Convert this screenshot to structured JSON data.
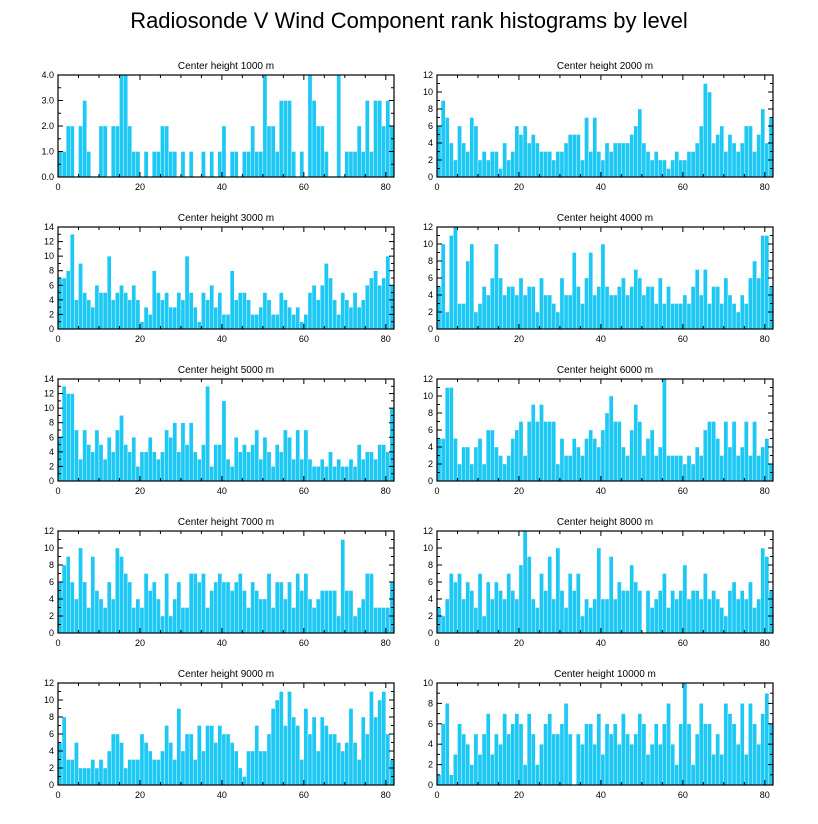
{
  "title": "Radiosonde V Wind Component rank histograms by level",
  "colors": {
    "bar": "#1ec8f5",
    "axis": "#000000",
    "background": "#ffffff"
  },
  "chart_data": [
    {
      "type": "bar",
      "title": "Center height 1000 m",
      "xlim": [
        0,
        82
      ],
      "ylim": [
        0,
        4
      ],
      "xticks": [
        0,
        20,
        40,
        60,
        80
      ],
      "xtick_labels": [
        "0",
        "20",
        "40",
        "60",
        "80"
      ],
      "yticks": [
        0,
        1,
        2,
        3,
        4
      ],
      "ytick_labels": [
        "0.0",
        "1.0",
        "2.0",
        "3.0",
        "4.0"
      ],
      "values": [
        1,
        1,
        2,
        2,
        0,
        2,
        3,
        1,
        0,
        0,
        2,
        2,
        0,
        2,
        2,
        4,
        4,
        2,
        1,
        1,
        0,
        1,
        0,
        1,
        1,
        2,
        2,
        1,
        1,
        0,
        1,
        0,
        1,
        0,
        0,
        1,
        0,
        1,
        0,
        1,
        2,
        0,
        1,
        1,
        0,
        1,
        1,
        2,
        1,
        1,
        4,
        2,
        2,
        1,
        3,
        3,
        3,
        1,
        0,
        1,
        0,
        4,
        3,
        2,
        2,
        1,
        0,
        0,
        4,
        0,
        1,
        1,
        1,
        2,
        1,
        3,
        1,
        3,
        3,
        2,
        3,
        2
      ]
    },
    {
      "type": "bar",
      "title": "Center height 2000 m",
      "xlim": [
        0,
        82
      ],
      "ylim": [
        0,
        12
      ],
      "xticks": [
        0,
        20,
        40,
        60,
        80
      ],
      "xtick_labels": [
        "0",
        "20",
        "40",
        "60",
        "80"
      ],
      "yticks": [
        0,
        2,
        4,
        6,
        8,
        10,
        12
      ],
      "ytick_labels": [
        "0",
        "2",
        "4",
        "6",
        "8",
        "10",
        "12"
      ],
      "values": [
        6,
        9,
        7,
        4,
        2,
        6,
        4,
        3,
        7,
        6,
        2,
        3,
        2,
        3,
        3,
        1,
        4,
        2,
        3,
        6,
        5,
        6,
        4,
        5,
        4,
        3,
        3,
        3,
        2,
        3,
        3,
        4,
        5,
        5,
        5,
        2,
        7,
        3,
        7,
        3,
        2,
        4,
        3,
        4,
        4,
        4,
        4,
        5,
        6,
        8,
        4,
        3,
        2,
        3,
        2,
        2,
        1,
        2,
        3,
        2,
        2,
        3,
        3,
        4,
        6,
        11,
        10,
        4,
        5,
        6,
        3,
        5,
        4,
        3,
        4,
        6,
        6,
        3,
        5,
        8,
        4,
        7
      ]
    },
    {
      "type": "bar",
      "title": "Center height 3000 m",
      "xlim": [
        0,
        82
      ],
      "ylim": [
        0,
        14
      ],
      "xticks": [
        0,
        20,
        40,
        60,
        80
      ],
      "xtick_labels": [
        "0",
        "20",
        "40",
        "60",
        "80"
      ],
      "yticks": [
        0,
        2,
        4,
        6,
        8,
        10,
        12,
        14
      ],
      "ytick_labels": [
        "0",
        "2",
        "4",
        "6",
        "8",
        "10",
        "12",
        "14"
      ],
      "values": [
        7,
        7,
        8,
        13,
        4,
        9,
        5,
        4,
        3,
        6,
        5,
        5,
        10,
        4,
        5,
        6,
        5,
        4,
        6,
        4,
        1,
        3,
        2,
        8,
        5,
        4,
        5,
        3,
        3,
        5,
        4,
        10,
        5,
        3,
        1,
        5,
        4,
        6,
        3,
        5,
        2,
        2,
        8,
        4,
        5,
        5,
        4,
        2,
        2,
        3,
        5,
        4,
        2,
        2,
        5,
        4,
        3,
        2,
        3,
        1,
        2,
        5,
        6,
        4,
        6,
        9,
        7,
        4,
        2,
        5,
        4,
        3,
        5,
        3,
        4,
        6,
        7,
        8,
        6,
        7,
        10,
        6
      ]
    },
    {
      "type": "bar",
      "title": "Center height 4000 m",
      "xlim": [
        0,
        82
      ],
      "ylim": [
        0,
        12
      ],
      "xticks": [
        0,
        20,
        40,
        60,
        80
      ],
      "xtick_labels": [
        "0",
        "20",
        "40",
        "60",
        "80"
      ],
      "yticks": [
        0,
        2,
        4,
        6,
        8,
        10,
        12
      ],
      "ytick_labels": [
        "0",
        "2",
        "4",
        "6",
        "8",
        "10",
        "12"
      ],
      "values": [
        5,
        10,
        2,
        11,
        12,
        3,
        3,
        8,
        10,
        2,
        3,
        5,
        4,
        6,
        10,
        6,
        4,
        5,
        5,
        4,
        6,
        4,
        5,
        5,
        2,
        6,
        4,
        4,
        3,
        2,
        6,
        4,
        4,
        9,
        5,
        3,
        6,
        9,
        4,
        5,
        10,
        5,
        4,
        4,
        5,
        6,
        4,
        5,
        7,
        6,
        4,
        5,
        5,
        3,
        6,
        3,
        5,
        3,
        3,
        3,
        4,
        3,
        5,
        7,
        4,
        7,
        3,
        5,
        5,
        3,
        6,
        4,
        3,
        2,
        4,
        3,
        6,
        8,
        6,
        11,
        11,
        5
      ]
    },
    {
      "type": "bar",
      "title": "Center height 5000 m",
      "xlim": [
        0,
        82
      ],
      "ylim": [
        0,
        14
      ],
      "xticks": [
        0,
        20,
        40,
        60,
        80
      ],
      "xtick_labels": [
        "0",
        "20",
        "40",
        "60",
        "80"
      ],
      "yticks": [
        0,
        2,
        4,
        6,
        8,
        10,
        12,
        14
      ],
      "ytick_labels": [
        "0",
        "2",
        "4",
        "6",
        "8",
        "10",
        "12",
        "14"
      ],
      "values": [
        6,
        13,
        12,
        12,
        7,
        3,
        7,
        5,
        4,
        7,
        5,
        3,
        6,
        4,
        7,
        9,
        5,
        4,
        6,
        2,
        4,
        4,
        6,
        4,
        3,
        4,
        7,
        6,
        8,
        4,
        8,
        5,
        8,
        4,
        3,
        5,
        13,
        2,
        5,
        5,
        11,
        3,
        2,
        6,
        4,
        5,
        4,
        5,
        7,
        3,
        6,
        4,
        2,
        5,
        4,
        7,
        6,
        3,
        7,
        3,
        7,
        3,
        2,
        2,
        3,
        2,
        4,
        2,
        3,
        2,
        2,
        3,
        2,
        5,
        3,
        4,
        4,
        3,
        5,
        5,
        4,
        10
      ]
    },
    {
      "type": "bar",
      "title": "Center height 6000 m",
      "xlim": [
        0,
        82
      ],
      "ylim": [
        0,
        12
      ],
      "xticks": [
        0,
        20,
        40,
        60,
        80
      ],
      "xtick_labels": [
        "0",
        "20",
        "40",
        "60",
        "80"
      ],
      "yticks": [
        0,
        2,
        4,
        6,
        8,
        10,
        12
      ],
      "ytick_labels": [
        "0",
        "2",
        "4",
        "6",
        "8",
        "10",
        "12"
      ],
      "values": [
        5,
        5,
        11,
        11,
        5,
        2,
        4,
        4,
        2,
        4,
        5,
        2,
        6,
        6,
        4,
        3,
        2,
        3,
        5,
        6,
        7,
        3,
        7,
        9,
        7,
        9,
        7,
        7,
        7,
        2,
        5,
        3,
        3,
        5,
        4,
        3,
        5,
        6,
        5,
        4,
        6,
        8,
        10,
        7,
        7,
        4,
        3,
        6,
        9,
        7,
        3,
        5,
        6,
        3,
        4,
        12,
        3,
        3,
        3,
        3,
        2,
        3,
        2,
        4,
        3,
        6,
        7,
        7,
        5,
        3,
        7,
        4,
        7,
        3,
        4,
        7,
        3,
        7,
        3,
        4,
        5,
        2
      ]
    },
    {
      "type": "bar",
      "title": "Center height 7000 m",
      "xlim": [
        0,
        82
      ],
      "ylim": [
        0,
        12
      ],
      "xticks": [
        0,
        20,
        40,
        60,
        80
      ],
      "xtick_labels": [
        "0",
        "20",
        "40",
        "60",
        "80"
      ],
      "yticks": [
        0,
        2,
        4,
        6,
        8,
        10,
        12
      ],
      "ytick_labels": [
        "0",
        "2",
        "4",
        "6",
        "8",
        "10",
        "12"
      ],
      "values": [
        6,
        8,
        9,
        6,
        4,
        10,
        6,
        3,
        9,
        5,
        4,
        3,
        6,
        4,
        10,
        9,
        7,
        6,
        3,
        4,
        3,
        7,
        5,
        6,
        4,
        2,
        7,
        2,
        4,
        6,
        3,
        3,
        7,
        7,
        6,
        7,
        3,
        5,
        6,
        7,
        6,
        6,
        5,
        6,
        7,
        5,
        3,
        6,
        5,
        4,
        4,
        7,
        3,
        6,
        6,
        4,
        6,
        3,
        7,
        5,
        7,
        4,
        3,
        4,
        5,
        5,
        5,
        5,
        2,
        11,
        5,
        5,
        2,
        3,
        4,
        7,
        7,
        3,
        3,
        3,
        3,
        6
      ]
    },
    {
      "type": "bar",
      "title": "Center height 8000 m",
      "xlim": [
        0,
        82
      ],
      "ylim": [
        0,
        12
      ],
      "xticks": [
        0,
        20,
        40,
        60,
        80
      ],
      "xtick_labels": [
        "0",
        "20",
        "40",
        "60",
        "80"
      ],
      "yticks": [
        0,
        2,
        4,
        6,
        8,
        10,
        12
      ],
      "ytick_labels": [
        "0",
        "2",
        "4",
        "6",
        "8",
        "10",
        "12"
      ],
      "values": [
        3,
        2,
        4,
        7,
        6,
        7,
        4,
        6,
        5,
        3,
        7,
        2,
        6,
        4,
        6,
        5,
        4,
        7,
        5,
        4,
        8,
        12,
        9,
        4,
        3,
        7,
        5,
        9,
        4,
        10,
        5,
        3,
        7,
        5,
        7,
        2,
        4,
        3,
        4,
        10,
        4,
        4,
        9,
        4,
        6,
        5,
        5,
        8,
        6,
        5,
        0,
        5,
        3,
        4,
        5,
        7,
        3,
        5,
        4,
        5,
        8,
        4,
        5,
        5,
        4,
        7,
        4,
        5,
        4,
        3,
        2,
        5,
        6,
        4,
        5,
        4,
        6,
        3,
        4,
        10,
        9,
        5
      ]
    },
    {
      "type": "bar",
      "title": "Center height 9000 m",
      "xlim": [
        0,
        82
      ],
      "ylim": [
        0,
        12
      ],
      "xticks": [
        0,
        20,
        40,
        60,
        80
      ],
      "xtick_labels": [
        "0",
        "20",
        "40",
        "60",
        "80"
      ],
      "yticks": [
        0,
        2,
        4,
        6,
        8,
        10,
        12
      ],
      "ytick_labels": [
        "0",
        "2",
        "4",
        "6",
        "8",
        "10",
        "12"
      ],
      "values": [
        5,
        8,
        3,
        3,
        5,
        2,
        2,
        2,
        3,
        2,
        3,
        2,
        4,
        6,
        6,
        5,
        2,
        3,
        3,
        3,
        6,
        5,
        4,
        3,
        3,
        4,
        7,
        5,
        3,
        9,
        4,
        6,
        6,
        3,
        7,
        4,
        7,
        7,
        5,
        7,
        6,
        6,
        5,
        4,
        2,
        1,
        4,
        4,
        7,
        4,
        4,
        6,
        9,
        10,
        11,
        7,
        11,
        8,
        7,
        3,
        9,
        6,
        8,
        4,
        8,
        7,
        6,
        6,
        5,
        4,
        5,
        9,
        5,
        3,
        8,
        6,
        11,
        8,
        10,
        11,
        6,
        3
      ]
    },
    {
      "type": "bar",
      "title": "Center height 10000 m",
      "xlim": [
        0,
        82
      ],
      "ylim": [
        0,
        10
      ],
      "xticks": [
        0,
        20,
        40,
        60,
        80
      ],
      "xtick_labels": [
        "0",
        "20",
        "40",
        "60",
        "80"
      ],
      "yticks": [
        0,
        2,
        4,
        6,
        8,
        10
      ],
      "ytick_labels": [
        "0",
        "2",
        "4",
        "6",
        "8",
        "10"
      ],
      "values": [
        1,
        6,
        8,
        1,
        3,
        6,
        5,
        4,
        2,
        5,
        3,
        5,
        7,
        3,
        5,
        4,
        7,
        5,
        6,
        7,
        6,
        2,
        7,
        5,
        2,
        4,
        6,
        7,
        5,
        5,
        6,
        8,
        5,
        0,
        5,
        4,
        6,
        6,
        4,
        7,
        3,
        6,
        5,
        6,
        4,
        7,
        5,
        4,
        5,
        7,
        6,
        3,
        4,
        6,
        4,
        6,
        8,
        4,
        2,
        6,
        10,
        6,
        2,
        5,
        8,
        6,
        6,
        3,
        5,
        3,
        8,
        7,
        6,
        4,
        8,
        3,
        8,
        6,
        4,
        7,
        9,
        6
      ]
    }
  ]
}
